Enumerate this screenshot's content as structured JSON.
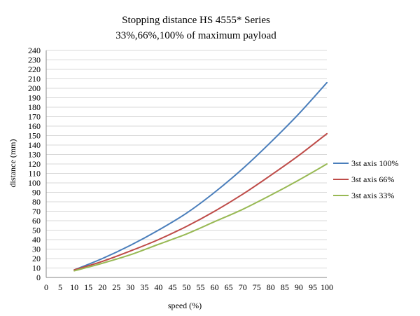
{
  "chart_data": {
    "type": "line",
    "title": "Stopping distance HS 4555* Series",
    "subtitle": "33%,66%,100% of maximum payload",
    "xlabel": "speed (%)",
    "ylabel": "distance (mm)",
    "xlim": [
      0,
      100
    ],
    "ylim": [
      0,
      240
    ],
    "x_ticks": [
      0,
      5,
      10,
      15,
      20,
      25,
      30,
      35,
      40,
      45,
      50,
      55,
      60,
      65,
      70,
      75,
      80,
      85,
      90,
      95,
      100
    ],
    "y_ticks": [
      0,
      10,
      20,
      30,
      40,
      50,
      60,
      70,
      80,
      90,
      100,
      110,
      120,
      130,
      140,
      150,
      160,
      170,
      180,
      190,
      200,
      210,
      220,
      230,
      240
    ],
    "grid": "horizontal",
    "legend_position": "right",
    "x": [
      10,
      20,
      30,
      40,
      50,
      60,
      70,
      80,
      90,
      100
    ],
    "series": [
      {
        "name": "3st axis 100%",
        "color": "#4a7ebb",
        "values": [
          8,
          20,
          34,
          50,
          68,
          90,
          115,
          143,
          173,
          206
        ]
      },
      {
        "name": "3st axis 66%",
        "color": "#be4b48",
        "values": [
          8,
          17,
          28,
          40,
          54,
          70,
          88,
          108,
          129,
          152
        ]
      },
      {
        "name": "3st axis 33%",
        "color": "#98b954",
        "values": [
          7,
          15,
          24,
          35,
          46,
          59,
          72,
          87,
          103,
          120
        ]
      }
    ]
  }
}
